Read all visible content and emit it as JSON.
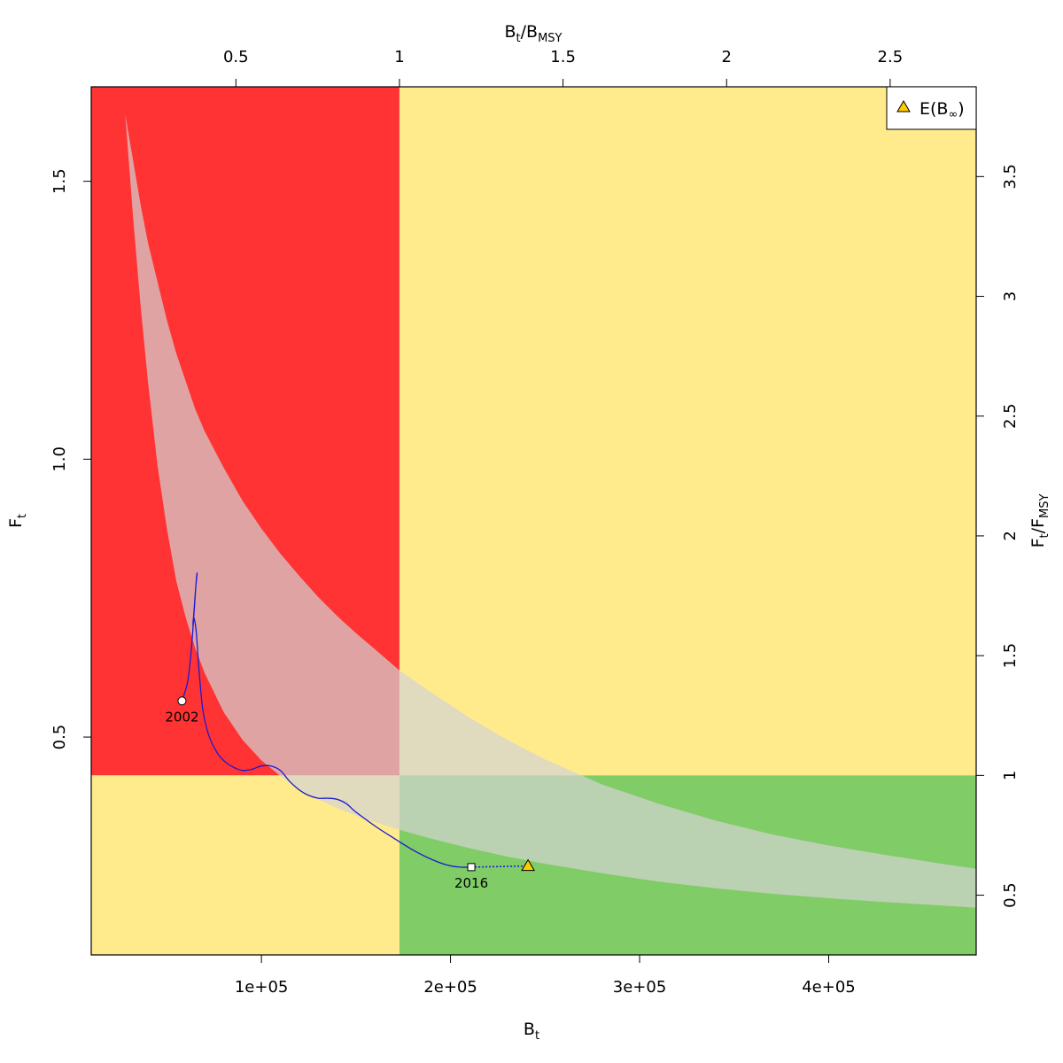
{
  "chart_data": {
    "type": "line",
    "title": "",
    "xlabel": {
      "base": "B",
      "sub": "t"
    },
    "ylabel": {
      "base": "F",
      "sub": "t"
    },
    "top_axis_label": {
      "base1": "B",
      "sub1": "t",
      "sep": "/",
      "base2": "B",
      "sub2": "MSY"
    },
    "right_axis_label": {
      "base1": "F",
      "sub1": "t",
      "sep": "/",
      "base2": "F",
      "sub2": "MSY"
    },
    "xlim": [
      10000,
      478000
    ],
    "ylim": [
      0.108,
      1.67
    ],
    "bmsy": 173000,
    "fmsy": 0.431,
    "x_ticks": [
      100000,
      200000,
      300000,
      400000
    ],
    "x_tick_labels": [
      "1e+05",
      "2e+05",
      "3e+05",
      "4e+05"
    ],
    "y_ticks": [
      0.5,
      1.0,
      1.5
    ],
    "y_tick_labels": [
      "0.5",
      "1.0",
      "1.5"
    ],
    "top_ticks": [
      0.5,
      1,
      1.5,
      2,
      2.5
    ],
    "top_tick_labels": [
      "0.5",
      "1",
      "1.5",
      "2",
      "2.5"
    ],
    "right_ticks": [
      0.5,
      1,
      1.5,
      2,
      2.5,
      3,
      3.5
    ],
    "right_tick_labels": [
      "0.5",
      "1",
      "1.5",
      "2",
      "2.5",
      "3",
      "3.5"
    ],
    "zones": {
      "overfished_overfishing": "#ff3333",
      "caution": "#ffeb8c",
      "healthy": "#80cc66"
    },
    "equilibrium_band": {
      "color": "#d3d3d3",
      "opacity": 0.7,
      "x": [
        28000,
        32000,
        36000,
        40000,
        45000,
        50000,
        55000,
        60000,
        65000,
        70000,
        80000,
        90000,
        100000,
        110000,
        120000,
        130000,
        140000,
        150000,
        160000,
        173000,
        190000,
        210000,
        230000,
        250000,
        280000,
        310000,
        340000,
        370000,
        400000,
        430000,
        460000,
        478000
      ],
      "upper": [
        1.62,
        1.54,
        1.46,
        1.39,
        1.32,
        1.25,
        1.19,
        1.14,
        1.09,
        1.05,
        0.985,
        0.925,
        0.875,
        0.83,
        0.79,
        0.752,
        0.718,
        0.687,
        0.658,
        0.62,
        0.58,
        0.535,
        0.495,
        0.46,
        0.415,
        0.38,
        0.35,
        0.325,
        0.305,
        0.288,
        0.272,
        0.263
      ],
      "lower": [
        1.62,
        1.44,
        1.28,
        1.14,
        0.99,
        0.875,
        0.78,
        0.715,
        0.66,
        0.615,
        0.545,
        0.495,
        0.458,
        0.43,
        0.407,
        0.388,
        0.372,
        0.359,
        0.347,
        0.333,
        0.317,
        0.3,
        0.285,
        0.272,
        0.255,
        0.24,
        0.228,
        0.218,
        0.21,
        0.203,
        0.197,
        0.193
      ]
    },
    "series": [
      {
        "color": "#1a1ad4",
        "x": [
          58000,
          61000,
          63000,
          64500,
          65500,
          66000,
          65300,
          64200,
          63800,
          64200,
          65500,
          67000,
          69000,
          72000,
          76000,
          80000,
          85000,
          90000,
          95000,
          100000,
          105000,
          110000,
          115000,
          120000,
          125000,
          130000,
          135000,
          140000,
          145000,
          150000,
          160000,
          170000,
          180000,
          190000,
          198000,
          205000,
          211000
        ],
        "y": [
          0.565,
          0.6,
          0.66,
          0.73,
          0.78,
          0.795,
          0.77,
          0.72,
          0.7,
          0.715,
          0.69,
          0.62,
          0.55,
          0.505,
          0.475,
          0.458,
          0.446,
          0.44,
          0.442,
          0.448,
          0.448,
          0.44,
          0.42,
          0.405,
          0.395,
          0.39,
          0.39,
          0.388,
          0.38,
          0.365,
          0.34,
          0.318,
          0.297,
          0.28,
          0.27,
          0.266,
          0.266
        ]
      }
    ],
    "projection": {
      "x": [
        211000,
        241000
      ],
      "y": [
        0.266,
        0.268
      ],
      "color": "#1a1ad4"
    },
    "start_point": {
      "x": 58000,
      "y": 0.565,
      "label": "2002"
    },
    "end_point": {
      "x": 211000,
      "y": 0.266,
      "label": "2016"
    },
    "equilibrium_point": {
      "x": 241000,
      "y": 0.268,
      "color": "#ffcc00"
    },
    "legend": {
      "position": "top-right",
      "entries": [
        {
          "symbol": "triangle",
          "text_main": "E(B",
          "text_sub": "∞",
          "text_end": ")"
        }
      ]
    },
    "grid": false
  }
}
